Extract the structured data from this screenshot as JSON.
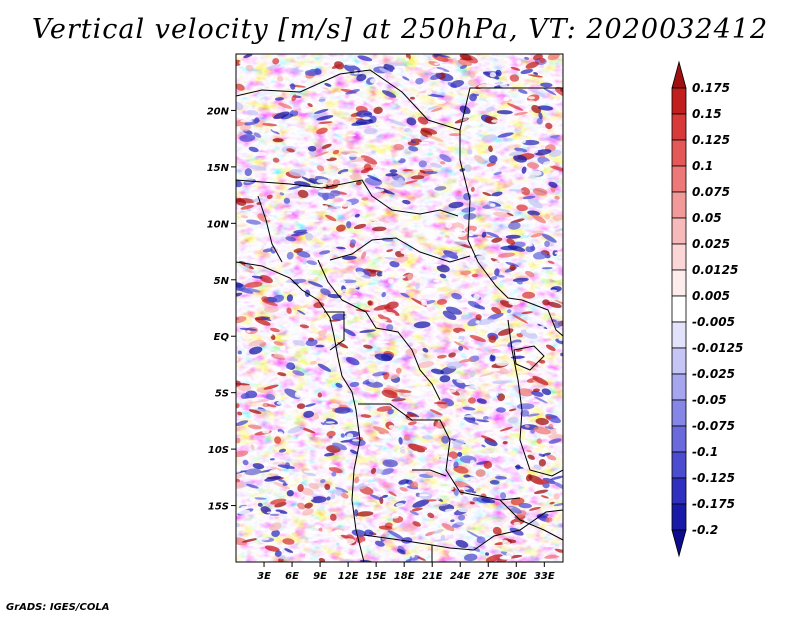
{
  "title": "Vertical velocity [m/s] at 250hPa, VT: 2020032412",
  "credit": "GrADS: IGES/COLA",
  "map": {
    "lon_range": [
      0,
      35
    ],
    "lat_range": [
      -20,
      25
    ],
    "lat_ticks": [
      {
        "value": 20,
        "label": "20N"
      },
      {
        "value": 15,
        "label": "15N"
      },
      {
        "value": 10,
        "label": "10N"
      },
      {
        "value": 5,
        "label": "5N"
      },
      {
        "value": 0,
        "label": "EQ"
      },
      {
        "value": -5,
        "label": "5S"
      },
      {
        "value": -10,
        "label": "10S"
      },
      {
        "value": -15,
        "label": "15S"
      }
    ],
    "lon_ticks": [
      {
        "value": 3,
        "label": "3E"
      },
      {
        "value": 6,
        "label": "6E"
      },
      {
        "value": 9,
        "label": "9E"
      },
      {
        "value": 12,
        "label": "12E"
      },
      {
        "value": 15,
        "label": "15E"
      },
      {
        "value": 18,
        "label": "18E"
      },
      {
        "value": 21,
        "label": "21E"
      },
      {
        "value": 24,
        "label": "24E"
      },
      {
        "value": 27,
        "label": "27E"
      },
      {
        "value": 30,
        "label": "30E"
      },
      {
        "value": 33,
        "label": "33E"
      }
    ]
  },
  "colorbar": {
    "labels": [
      "0.175",
      "0.15",
      "0.125",
      "0.1",
      "0.075",
      "0.05",
      "0.025",
      "0.0125",
      "0.005",
      "-0.005",
      "-0.0125",
      "-0.025",
      "-0.05",
      "-0.075",
      "-0.1",
      "-0.125",
      "-0.175",
      "-0.2"
    ],
    "colors": [
      "#a01010",
      "#c21e1e",
      "#d83a3a",
      "#e45858",
      "#ec7878",
      "#f29a9a",
      "#f7baba",
      "#fbd6d6",
      "#fdecec",
      "#ffffff",
      "#e2e2fb",
      "#c6c6f6",
      "#a6a6ef",
      "#8686e6",
      "#6a6adc",
      "#4c4cd0",
      "#3030c0",
      "#1a1aa8",
      "#0c0c8c"
    ]
  }
}
